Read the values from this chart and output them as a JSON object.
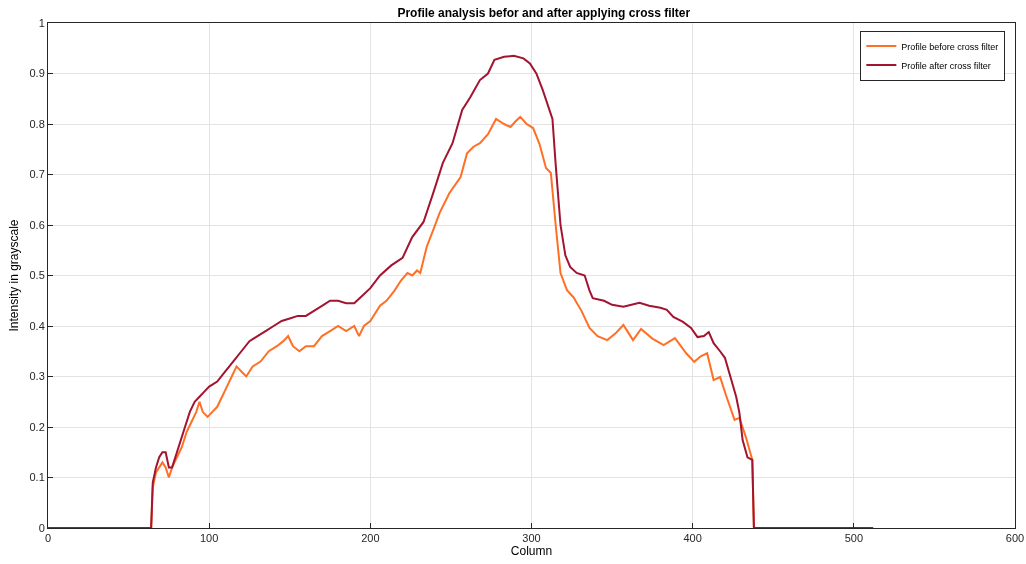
{
  "chart_data": {
    "type": "line",
    "title": "Profile analysis befor and after applying cross filter",
    "xlabel": "Column",
    "ylabel": "Intensity in grayscale",
    "xlim": [
      0,
      600
    ],
    "xticks": [
      0,
      100,
      200,
      300,
      400,
      500,
      600
    ],
    "ylim": [
      0,
      1
    ],
    "yticks": [
      0,
      0.1,
      0.2,
      0.3,
      0.4,
      0.5,
      0.6,
      0.7,
      0.8,
      0.9,
      1
    ],
    "grid": true,
    "legend": "top right",
    "line_style": "solid",
    "marker": "none",
    "series": [
      {
        "name": "Profile before cross filter",
        "color": "#ff6f26",
        "x": [
          0,
          64,
          65,
          67,
          69,
          71,
          73,
          75,
          77,
          80,
          83,
          86,
          89,
          92,
          94,
          96,
          99,
          102,
          105,
          108,
          111,
          114,
          117,
          120,
          123,
          127,
          132,
          137,
          142,
          146,
          149,
          152,
          156,
          160,
          165,
          170,
          175,
          180,
          185,
          190,
          193,
          196,
          200,
          206,
          210,
          215,
          219,
          223,
          226,
          229,
          231,
          235,
          239,
          243,
          249,
          256,
          260,
          264,
          268,
          273,
          278,
          283,
          287,
          290,
          293,
          297,
          301,
          305,
          309,
          312,
          315,
          318,
          322,
          326,
          331,
          336,
          341,
          347,
          352,
          357,
          363,
          368,
          375,
          382,
          389,
          396,
          401,
          405,
          409,
          413,
          417,
          421,
          426,
          429,
          433,
          437,
          438,
          512
        ],
        "values": [
          0,
          0,
          0.08,
          0.11,
          0.12,
          0.13,
          0.12,
          0.1,
          0.12,
          0.14,
          0.16,
          0.19,
          0.21,
          0.23,
          0.25,
          0.23,
          0.22,
          0.23,
          0.24,
          0.26,
          0.28,
          0.3,
          0.32,
          0.31,
          0.3,
          0.32,
          0.33,
          0.35,
          0.36,
          0.37,
          0.38,
          0.36,
          0.35,
          0.36,
          0.36,
          0.38,
          0.39,
          0.4,
          0.39,
          0.4,
          0.38,
          0.4,
          0.41,
          0.44,
          0.45,
          0.47,
          0.49,
          0.505,
          0.5,
          0.51,
          0.505,
          0.557,
          0.59,
          0.624,
          0.663,
          0.695,
          0.742,
          0.755,
          0.762,
          0.78,
          0.81,
          0.8,
          0.794,
          0.805,
          0.814,
          0.8,
          0.792,
          0.76,
          0.713,
          0.703,
          0.6,
          0.505,
          0.471,
          0.457,
          0.43,
          0.396,
          0.38,
          0.372,
          0.385,
          0.402,
          0.372,
          0.394,
          0.375,
          0.362,
          0.376,
          0.346,
          0.329,
          0.34,
          0.346,
          0.293,
          0.299,
          0.26,
          0.214,
          0.218,
          0.18,
          0.135,
          0,
          0
        ]
      },
      {
        "name": "Profile after cross filter",
        "color": "#a2142f",
        "x": [
          0,
          64,
          65,
          67,
          69,
          71,
          73,
          75,
          77,
          79,
          82,
          85,
          88,
          91,
          94,
          97,
          100,
          105,
          110,
          115,
          120,
          125,
          130,
          135,
          140,
          145,
          150,
          155,
          160,
          165,
          170,
          175,
          180,
          185,
          190,
          195,
          200,
          206,
          213,
          220,
          226,
          233,
          239,
          245,
          251,
          257,
          262,
          268,
          273,
          277,
          283,
          289,
          295,
          299,
          303,
          307,
          313,
          315,
          318,
          321,
          324,
          328,
          333,
          336,
          338,
          345,
          350,
          357,
          362,
          367,
          373,
          380,
          384,
          388,
          394,
          399,
          403,
          407,
          410,
          413,
          417,
          420,
          424,
          427,
          429,
          431,
          434,
          437,
          438,
          512
        ],
        "values": [
          0,
          0,
          0.09,
          0.12,
          0.14,
          0.15,
          0.15,
          0.12,
          0.12,
          0.14,
          0.17,
          0.2,
          0.23,
          0.25,
          0.26,
          0.27,
          0.28,
          0.29,
          0.31,
          0.33,
          0.35,
          0.37,
          0.38,
          0.39,
          0.4,
          0.41,
          0.415,
          0.42,
          0.42,
          0.43,
          0.44,
          0.45,
          0.45,
          0.445,
          0.445,
          0.46,
          0.475,
          0.5,
          0.52,
          0.535,
          0.576,
          0.606,
          0.663,
          0.723,
          0.762,
          0.828,
          0.853,
          0.887,
          0.9,
          0.927,
          0.933,
          0.935,
          0.93,
          0.92,
          0.9,
          0.867,
          0.81,
          0.72,
          0.6,
          0.54,
          0.517,
          0.505,
          0.5,
          0.47,
          0.455,
          0.45,
          0.442,
          0.438,
          0.442,
          0.446,
          0.44,
          0.436,
          0.432,
          0.418,
          0.408,
          0.396,
          0.378,
          0.38,
          0.388,
          0.366,
          0.35,
          0.337,
          0.293,
          0.26,
          0.228,
          0.174,
          0.14,
          0.135,
          0,
          0
        ]
      }
    ]
  }
}
